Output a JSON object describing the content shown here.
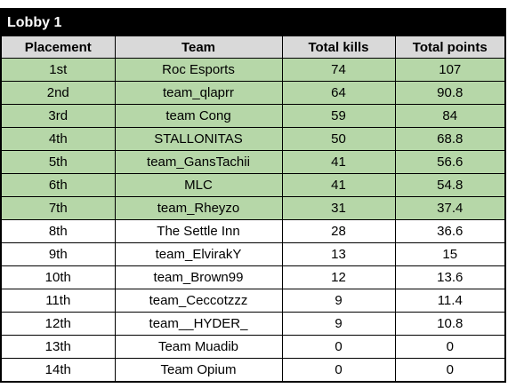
{
  "lobby": {
    "title": "Lobby 1"
  },
  "columns": {
    "placement": "Placement",
    "team": "Team",
    "kills": "Total kills",
    "points": "Total points"
  },
  "colors": {
    "qualified_row": "#b6d7a8",
    "header_row": "#d9d9d9",
    "title_bar": "#000000"
  },
  "rows": [
    {
      "placement": "1st",
      "team": "Roc Esports",
      "kills": "74",
      "points": "107",
      "highlight": true
    },
    {
      "placement": "2nd",
      "team": "team_qlaprr",
      "kills": "64",
      "points": "90.8",
      "highlight": true
    },
    {
      "placement": "3rd",
      "team": "team Cong",
      "kills": "59",
      "points": "84",
      "highlight": true
    },
    {
      "placement": "4th",
      "team": "STALLONITAS",
      "kills": "50",
      "points": "68.8",
      "highlight": true
    },
    {
      "placement": "5th",
      "team": "team_GansTachii",
      "kills": "41",
      "points": "56.6",
      "highlight": true
    },
    {
      "placement": "6th",
      "team": "MLC",
      "kills": "41",
      "points": "54.8",
      "highlight": true
    },
    {
      "placement": "7th",
      "team": "team_Rheyzo",
      "kills": "31",
      "points": "37.4",
      "highlight": true
    },
    {
      "placement": "8th",
      "team": "The Settle Inn",
      "kills": "28",
      "points": "36.6",
      "highlight": false
    },
    {
      "placement": "9th",
      "team": "team_ElvirakY",
      "kills": "13",
      "points": "15",
      "highlight": false
    },
    {
      "placement": "10th",
      "team": "team_Brown99",
      "kills": "12",
      "points": "13.6",
      "highlight": false
    },
    {
      "placement": "11th",
      "team": "team_Ceccotzzz",
      "kills": "9",
      "points": "11.4",
      "highlight": false
    },
    {
      "placement": "12th",
      "team": "team__HYDER_",
      "kills": "9",
      "points": "10.8",
      "highlight": false
    },
    {
      "placement": "13th",
      "team": "Team Muadib",
      "kills": "0",
      "points": "0",
      "highlight": false
    },
    {
      "placement": "14th",
      "team": "Team Opium",
      "kills": "0",
      "points": "0",
      "highlight": false
    }
  ]
}
